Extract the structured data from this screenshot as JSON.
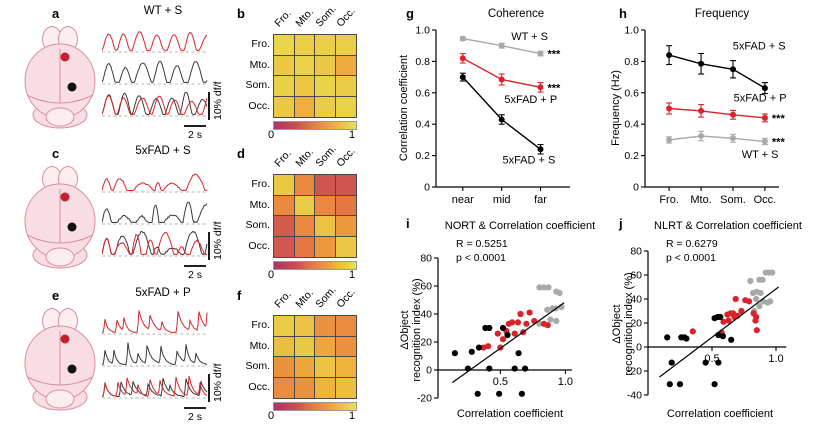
{
  "letters": {
    "a": "a",
    "b": "b",
    "c": "c",
    "d": "d",
    "e": "e",
    "f": "f",
    "g": "g",
    "h": "h",
    "i": "i",
    "j": "j"
  },
  "panels": {
    "a": {
      "title": "WT + S",
      "scale_y": "10% df/f",
      "scale_x": "2 s"
    },
    "c": {
      "title": "5xFAD + S",
      "scale_y": "10% df/f",
      "scale_x": "2 s"
    },
    "e": {
      "title": "5xFAD + P",
      "scale_y": "10% df/f",
      "scale_x": "2 s"
    }
  },
  "colors": {
    "red": "#d8232a",
    "gray": "#a9a9a9",
    "black": "#000000",
    "trace_red": "#d8262c",
    "trace_black": "#3a3a3a",
    "dash_gray": "#b5b5b5",
    "mouse_fill": "#f8dde2",
    "mouse_fill_light": "#fcedf0",
    "mouse_stroke": "#d98fa0",
    "dot_red": "#c51f2f",
    "dot_black": "#111111",
    "heat_stops": [
      "#b03366",
      "#c94b52",
      "#e87e41",
      "#f0b13c",
      "#e6e44f"
    ]
  },
  "chart_data": [
    {
      "panel": "b",
      "type": "heatmap",
      "rows": [
        "Fro.",
        "Mto.",
        "Som.",
        "Occ."
      ],
      "cols": [
        "Fro.",
        "Mto.",
        "Som.",
        "Occ."
      ],
      "values": [
        [
          0.93,
          0.89,
          0.9,
          0.89
        ],
        [
          0.87,
          0.91,
          0.86,
          0.72
        ],
        [
          0.9,
          0.86,
          0.91,
          0.88
        ],
        [
          0.87,
          0.73,
          0.88,
          0.91
        ]
      ],
      "colorbar_labels": [
        "0",
        "1"
      ]
    },
    {
      "panel": "d",
      "type": "heatmap",
      "rows": [
        "Fro.",
        "Mto.",
        "Som.",
        "Occ."
      ],
      "cols": [
        "Fro.",
        "Mto.",
        "Som.",
        "Occ."
      ],
      "values": [
        [
          0.87,
          0.56,
          0.3,
          0.3
        ],
        [
          0.56,
          0.88,
          0.55,
          0.47
        ],
        [
          0.33,
          0.55,
          0.83,
          0.63
        ],
        [
          0.31,
          0.47,
          0.63,
          0.86
        ]
      ],
      "colorbar_labels": [
        "0",
        "1"
      ]
    },
    {
      "panel": "f",
      "type": "heatmap",
      "rows": [
        "Fro.",
        "Mto.",
        "Som.",
        "Occ."
      ],
      "cols": [
        "Fro.",
        "Mto.",
        "Som.",
        "Occ."
      ],
      "values": [
        [
          0.88,
          0.83,
          0.6,
          0.57
        ],
        [
          0.82,
          0.87,
          0.7,
          0.6
        ],
        [
          0.6,
          0.7,
          0.84,
          0.76
        ],
        [
          0.57,
          0.6,
          0.76,
          0.82
        ]
      ],
      "colorbar_labels": [
        "0",
        "1"
      ]
    },
    {
      "panel": "g",
      "type": "line",
      "title": "Coherence",
      "ylabel": "Correlation coefficient",
      "categories": [
        "near",
        "mid",
        "far"
      ],
      "ylim": [
        0,
        1
      ],
      "yticks": [
        0,
        0.2,
        0.4,
        0.6,
        0.8,
        1.0
      ],
      "ytick_labels": [
        "0",
        "0.2",
        "0.4",
        "0.6",
        "0.8",
        "1.0"
      ],
      "series": [
        {
          "name": "WT + S",
          "color_key": "gray",
          "values": [
            0.945,
            0.9,
            0.85
          ],
          "errors": [
            0.012,
            0.015,
            0.015
          ],
          "sig": "***",
          "label_at": [
            1.72,
            0.935
          ]
        },
        {
          "name": "5xFAD + P",
          "color_key": "red",
          "values": [
            0.82,
            0.685,
            0.635
          ],
          "errors": [
            0.03,
            0.035,
            0.03
          ],
          "sig": "***",
          "label_at": [
            1.75,
            0.535
          ]
        },
        {
          "name": "5xFAD + S",
          "color_key": "black",
          "values": [
            0.7,
            0.43,
            0.24
          ],
          "errors": [
            0.025,
            0.03,
            0.03
          ],
          "sig": "",
          "label_at": [
            1.7,
            0.15
          ]
        }
      ]
    },
    {
      "panel": "h",
      "type": "line",
      "title": "Frequency",
      "ylabel": "Frequency (Hz)",
      "categories": [
        "Fro.",
        "Mto.",
        "Som.",
        "Occ."
      ],
      "ylim": [
        0,
        1
      ],
      "yticks": [
        0,
        0.2,
        0.4,
        0.6,
        0.8,
        1.0
      ],
      "ytick_labels": [
        "0",
        "0.2",
        "0.4",
        "0.6",
        "0.8",
        "1.0"
      ],
      "series": [
        {
          "name": "5xFAD + S",
          "color_key": "black",
          "values": [
            0.84,
            0.785,
            0.75,
            0.63
          ],
          "errors": [
            0.06,
            0.065,
            0.055,
            0.035
          ],
          "sig": "",
          "label_at": [
            2.82,
            0.875
          ]
        },
        {
          "name": "5xFAD + P",
          "color_key": "red",
          "values": [
            0.5,
            0.485,
            0.46,
            0.44
          ],
          "errors": [
            0.035,
            0.04,
            0.028,
            0.025
          ],
          "sig": "***",
          "label_at": [
            2.85,
            0.545
          ]
        },
        {
          "name": "WT + S",
          "color_key": "gray",
          "values": [
            0.3,
            0.325,
            0.31,
            0.29
          ],
          "errors": [
            0.02,
            0.03,
            0.025,
            0.02
          ],
          "sig": "***",
          "label_at": [
            2.85,
            0.185
          ]
        }
      ]
    },
    {
      "panel": "i",
      "type": "scatter",
      "title": "NORT & Correlation coefficient",
      "stats": [
        "R = 0.5251",
        "p < 0.0001"
      ],
      "xlabel": "Correlation coefficient",
      "ylabel_lines": [
        "ΔObject",
        "recognition index (%)"
      ],
      "xlim": [
        0.02,
        1.05
      ],
      "ylim": [
        -20,
        80
      ],
      "xticks": [
        0.5,
        1.0
      ],
      "xtick_labels": [
        "0.5",
        "1.0"
      ],
      "yticks": [
        -20,
        0,
        20,
        40,
        60,
        80
      ],
      "ytick_labels": [
        "-20",
        "0",
        "20",
        "40",
        "60",
        "80"
      ],
      "fit_line": {
        "x1": 0.13,
        "y1": -9,
        "x2": 0.99,
        "y2": 48
      },
      "series": [
        {
          "name": "WT + S",
          "color_key": "gray",
          "points": [
            [
              0.8,
              59
            ],
            [
              0.835,
              59
            ],
            [
              0.87,
              59
            ],
            [
              0.93,
              56
            ],
            [
              0.955,
              55
            ],
            [
              0.9,
              44
            ],
            [
              0.925,
              44
            ],
            [
              0.97,
              45
            ],
            [
              0.86,
              43
            ],
            [
              0.885,
              36
            ],
            [
              0.93,
              35
            ],
            [
              0.8,
              33
            ]
          ]
        },
        {
          "name": "5xFAD + P",
          "color_key": "red",
          "points": [
            [
              0.37,
              16
            ],
            [
              0.405,
              17
            ],
            [
              0.5,
              16
            ],
            [
              0.48,
              26
            ],
            [
              0.52,
              22
            ],
            [
              0.545,
              28
            ],
            [
              0.565,
              33
            ],
            [
              0.59,
              34
            ],
            [
              0.61,
              26
            ],
            [
              0.635,
              34
            ],
            [
              0.655,
              40
            ],
            [
              0.675,
              27
            ],
            [
              0.7,
              33
            ],
            [
              0.725,
              41
            ],
            [
              0.76,
              35
            ],
            [
              0.835,
              33
            ],
            [
              0.865,
              32
            ]
          ]
        },
        {
          "name": "5xFAD + S",
          "color_key": "black",
          "points": [
            [
              0.15,
              12
            ],
            [
              0.25,
              1
            ],
            [
              0.28,
              13
            ],
            [
              0.335,
              16
            ],
            [
              0.385,
              30
            ],
            [
              0.415,
              30
            ],
            [
              0.415,
              1
            ],
            [
              0.52,
              30
            ],
            [
              0.555,
              25
            ],
            [
              0.61,
              1
            ],
            [
              0.64,
              12
            ],
            [
              0.69,
              1
            ],
            [
              0.325,
              -17
            ],
            [
              0.49,
              -17
            ],
            [
              0.665,
              -17
            ]
          ]
        }
      ]
    },
    {
      "panel": "j",
      "type": "scatter",
      "title": "NLRT & Correlation coefficient",
      "stats": [
        "R = 0.6279",
        "p < 0.0001"
      ],
      "xlabel": "Correlation coefficient",
      "ylabel_lines": [
        "ΔObject",
        "recognition index (%)"
      ],
      "xlim": [
        0.0,
        1.08
      ],
      "ylim": [
        -40,
        80
      ],
      "xticks": [
        0.5,
        1.0
      ],
      "xtick_labels": [
        "0.5",
        "1.0"
      ],
      "yticks": [
        -40,
        -20,
        0,
        20,
        40,
        60,
        80
      ],
      "ytick_labels": [
        "-40",
        "-20",
        "0",
        "20",
        "40",
        "60",
        "80"
      ],
      "fit_line": {
        "x1": 0.09,
        "y1": -25,
        "x2": 1.02,
        "y2": 50
      },
      "series": [
        {
          "name": "WT + S",
          "color_key": "gray",
          "points": [
            [
              0.92,
              62
            ],
            [
              0.945,
              62
            ],
            [
              0.97,
              62
            ],
            [
              0.8,
              55
            ],
            [
              0.87,
              56
            ],
            [
              0.895,
              56
            ],
            [
              0.82,
              45
            ],
            [
              0.85,
              46
            ],
            [
              0.88,
              45
            ],
            [
              0.845,
              40
            ],
            [
              0.9,
              38
            ],
            [
              0.935,
              37
            ],
            [
              0.87,
              34
            ],
            [
              0.955,
              38
            ],
            [
              0.83,
              30
            ]
          ]
        },
        {
          "name": "5xFAD + P",
          "color_key": "red",
          "points": [
            [
              0.685,
              40
            ],
            [
              0.76,
              39
            ],
            [
              0.79,
              38
            ],
            [
              0.62,
              27
            ],
            [
              0.645,
              28
            ],
            [
              0.665,
              28
            ],
            [
              0.675,
              25
            ],
            [
              0.7,
              26
            ],
            [
              0.73,
              30
            ],
            [
              0.825,
              28
            ],
            [
              0.845,
              25
            ],
            [
              0.84,
              22
            ],
            [
              0.59,
              21
            ],
            [
              0.63,
              22
            ],
            [
              0.85,
              14
            ],
            [
              0.575,
              12
            ],
            [
              0.35,
              13
            ]
          ]
        },
        {
          "name": "5xFAD + S",
          "color_key": "black",
          "points": [
            [
              0.15,
              8
            ],
            [
              0.26,
              8
            ],
            [
              0.285,
              8
            ],
            [
              0.3,
              7
            ],
            [
              0.52,
              24
            ],
            [
              0.545,
              25
            ],
            [
              0.565,
              25
            ],
            [
              0.55,
              10
            ],
            [
              0.585,
              9
            ],
            [
              0.65,
              6
            ],
            [
              0.185,
              -13
            ],
            [
              0.45,
              -13
            ],
            [
              0.55,
              -13
            ],
            [
              0.17,
              -31
            ],
            [
              0.25,
              -31
            ],
            [
              0.52,
              -31
            ]
          ]
        }
      ]
    }
  ]
}
